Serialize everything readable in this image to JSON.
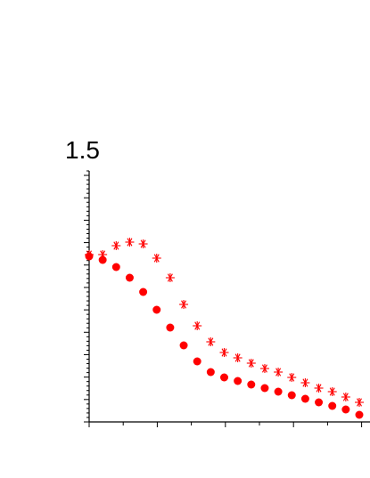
{
  "chart_data": {
    "type": "scatter",
    "title": "",
    "xlabel": "",
    "ylabel": "",
    "y_tick_labels": [
      "1.5"
    ],
    "grid": false,
    "legend": "none",
    "series": [
      {
        "marker": "asterisk",
        "color": "#ff0000",
        "x": [
          0,
          1,
          2,
          3,
          4,
          5,
          6,
          7,
          8,
          9,
          10,
          11,
          12,
          13,
          14,
          15,
          16,
          17,
          18,
          19,
          20
        ],
        "y": [
          0.62,
          0.62,
          0.645,
          0.655,
          0.65,
          0.61,
          0.555,
          0.48,
          0.42,
          0.375,
          0.345,
          0.33,
          0.315,
          0.3,
          0.29,
          0.275,
          0.26,
          0.245,
          0.235,
          0.22,
          0.205
        ]
      },
      {
        "marker": "filled-circle",
        "color": "#ff0000",
        "x": [
          0,
          1,
          2,
          3,
          4,
          5,
          6,
          7,
          8,
          9,
          10,
          11,
          12,
          13,
          14,
          15,
          16,
          17,
          18,
          19,
          20
        ],
        "y": [
          0.615,
          0.605,
          0.585,
          0.555,
          0.515,
          0.465,
          0.415,
          0.365,
          0.32,
          0.29,
          0.275,
          0.265,
          0.255,
          0.245,
          0.235,
          0.225,
          0.215,
          0.205,
          0.195,
          0.185,
          0.17
        ]
      }
    ]
  }
}
